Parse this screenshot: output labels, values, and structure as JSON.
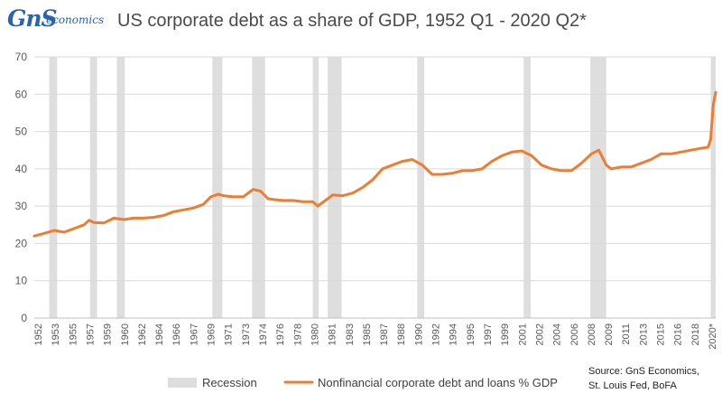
{
  "logo": {
    "main": "GnS",
    "sub": "economics"
  },
  "header": {
    "title": "US corporate debt as a share of GDP, 1952 Q1 - 2020 Q2*"
  },
  "source": {
    "line1": "Source: GnS Economics,",
    "line2": "St. Louis Fed, BoFA"
  },
  "colors": {
    "series": "#ed7d31",
    "recession": "#dedede",
    "grid": "#d9d9d9",
    "axis_text": "#595959"
  },
  "chart_data": {
    "type": "line",
    "title": "US corporate debt as a share of GDP, 1952 Q1 - 2020 Q2*",
    "xlabel": "",
    "ylabel": "",
    "xlim": [
      1952.0,
      2020.5
    ],
    "ylim": [
      0,
      70
    ],
    "yticks": [
      0,
      10,
      20,
      30,
      40,
      50,
      60,
      70
    ],
    "xtick_labels": [
      "1952",
      "1953",
      "1955",
      "1957",
      "1959",
      "1960",
      "1962",
      "1964",
      "1966",
      "1967",
      "1969",
      "1971",
      "1973",
      "1974",
      "1976",
      "1978",
      "1980",
      "1981",
      "1983",
      "1985",
      "1987",
      "1988",
      "1990",
      "1992",
      "1994",
      "1995",
      "1997",
      "1999",
      "2001",
      "2002",
      "2004",
      "2006",
      "2008",
      "2009",
      "2011",
      "2013",
      "2015",
      "2016",
      "2018",
      "2020*"
    ],
    "grid": true,
    "legend_position": "bottom",
    "recessions": [
      [
        1953.5,
        1954.3
      ],
      [
        1957.6,
        1958.3
      ],
      [
        1960.3,
        1961.1
      ],
      [
        1969.9,
        1970.9
      ],
      [
        1973.9,
        1975.2
      ],
      [
        1980.0,
        1980.6
      ],
      [
        1981.5,
        1982.9
      ],
      [
        1990.5,
        1991.2
      ],
      [
        2001.2,
        2001.9
      ],
      [
        2007.9,
        2009.5
      ],
      [
        2020.0,
        2020.5
      ]
    ],
    "series": [
      {
        "name": "Nonfinancial corporate debt and loans % GDP",
        "x": [
          1952.0,
          1953.0,
          1954.0,
          1955.0,
          1956.0,
          1957.0,
          1957.5,
          1958.0,
          1959.0,
          1960.0,
          1961.0,
          1962.0,
          1963.0,
          1964.0,
          1965.0,
          1966.0,
          1967.0,
          1968.0,
          1969.0,
          1969.75,
          1970.5,
          1971.0,
          1972.0,
          1973.0,
          1974.0,
          1974.75,
          1975.5,
          1976.0,
          1977.0,
          1978.0,
          1979.0,
          1980.0,
          1980.5,
          1981.0,
          1982.0,
          1983.0,
          1984.0,
          1985.0,
          1986.0,
          1987.0,
          1988.0,
          1989.0,
          1990.0,
          1991.0,
          1992.0,
          1993.0,
          1994.0,
          1995.0,
          1996.0,
          1997.0,
          1998.0,
          1999.0,
          2000.0,
          2001.0,
          2002.0,
          2003.0,
          2004.0,
          2005.0,
          2006.0,
          2007.0,
          2008.0,
          2008.75,
          2009.5,
          2010.0,
          2011.0,
          2012.0,
          2013.0,
          2014.0,
          2015.0,
          2016.0,
          2017.0,
          2018.0,
          2019.0,
          2019.75,
          2020.0,
          2020.25,
          2020.5
        ],
        "values": [
          22.0,
          22.7,
          23.5,
          23.0,
          24.0,
          25.0,
          26.2,
          25.6,
          25.5,
          26.8,
          26.4,
          26.8,
          26.8,
          27.0,
          27.5,
          28.5,
          29.0,
          29.5,
          30.5,
          32.5,
          33.2,
          32.8,
          32.5,
          32.5,
          34.5,
          34.0,
          32.0,
          31.8,
          31.5,
          31.5,
          31.2,
          31.2,
          30.0,
          31.0,
          33.0,
          32.8,
          33.5,
          35.0,
          37.0,
          40.0,
          41.0,
          42.0,
          42.5,
          41.0,
          38.5,
          38.5,
          38.8,
          39.5,
          39.5,
          40.0,
          42.0,
          43.5,
          44.5,
          44.8,
          43.5,
          41.0,
          40.0,
          39.5,
          39.5,
          41.5,
          44.0,
          45.0,
          41.0,
          40.0,
          40.5,
          40.5,
          41.5,
          42.5,
          44.0,
          44.0,
          44.5,
          45.0,
          45.5,
          45.8,
          48.0,
          57.0,
          60.5
        ]
      }
    ]
  },
  "legend": {
    "recession": "Recession",
    "series": "Nonfinancial corporate debt and loans % GDP"
  }
}
